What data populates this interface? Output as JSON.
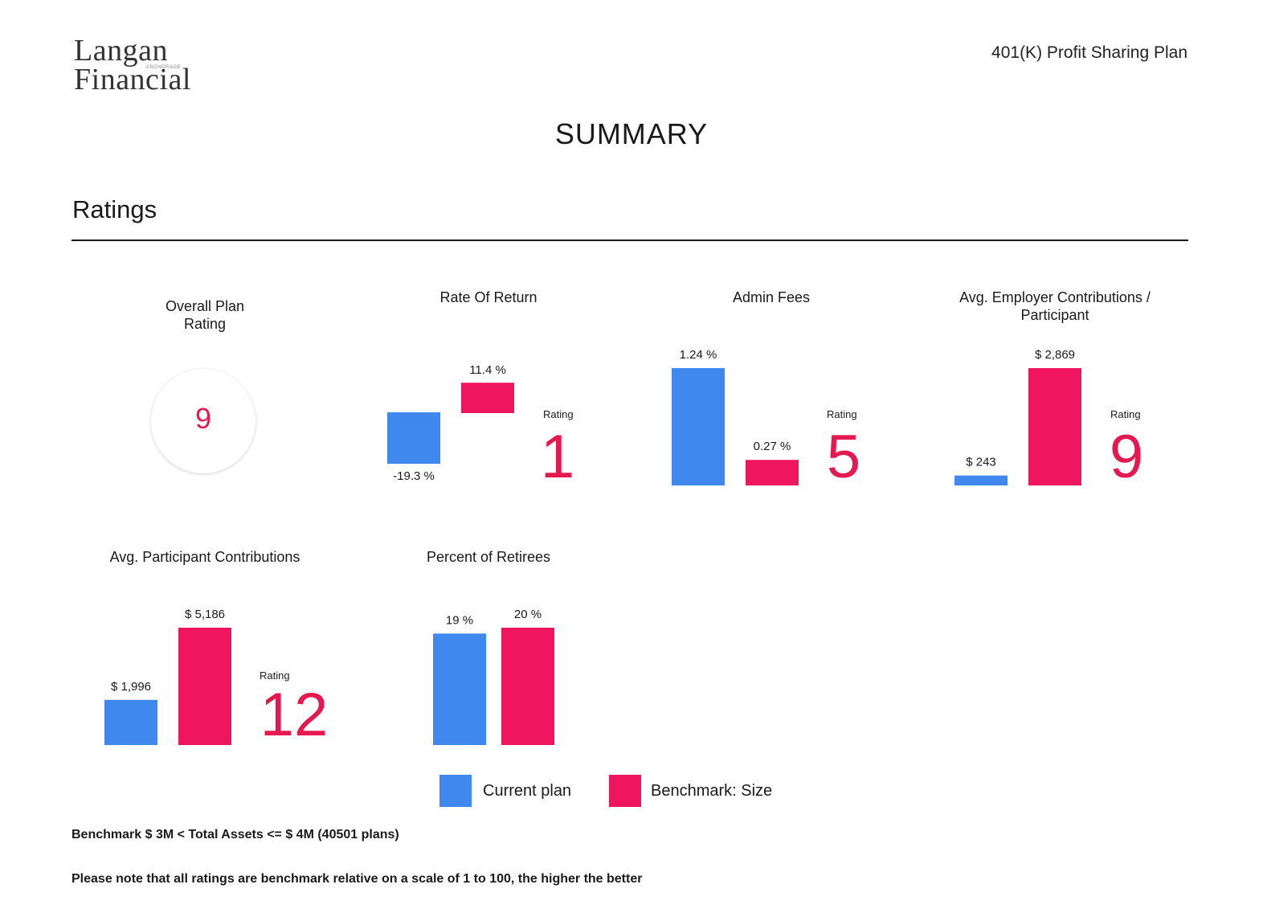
{
  "header": {
    "logo_line1": "Langan",
    "logo_line2": "Financial",
    "logo_tagline": "ANCHORAGE",
    "plan_name": "401(K) Profit Sharing Plan",
    "page_title": "SUMMARY",
    "section_title": "Ratings"
  },
  "colors": {
    "current": "#3e88ee",
    "benchmark": "#f0155f",
    "rating": "#e5194f"
  },
  "overall": {
    "title_line1": "Overall Plan",
    "title_line2": "Rating",
    "value": "9"
  },
  "chart_data": [
    {
      "type": "bar",
      "title": "Rate Of Return",
      "categories": [
        "Current plan",
        "Benchmark: Size"
      ],
      "values": [
        -19.3,
        11.4
      ],
      "labels": [
        "-19.3 %",
        "11.4 %"
      ],
      "rating_label": "Rating",
      "rating": "1"
    },
    {
      "type": "bar",
      "title": "Admin Fees",
      "categories": [
        "Current plan",
        "Benchmark: Size"
      ],
      "values": [
        1.24,
        0.27
      ],
      "labels": [
        "1.24 %",
        "0.27 %"
      ],
      "rating_label": "Rating",
      "rating": "5"
    },
    {
      "type": "bar",
      "title": "Avg. Employer Contributions / Participant",
      "title_line1": "Avg. Employer Contributions /",
      "title_line2": "Participant",
      "categories": [
        "Current plan",
        "Benchmark: Size"
      ],
      "values": [
        243,
        2869
      ],
      "labels": [
        "$ 243",
        "$ 2,869"
      ],
      "rating_label": "Rating",
      "rating": "9"
    },
    {
      "type": "bar",
      "title": "Avg. Participant Contributions",
      "categories": [
        "Current plan",
        "Benchmark: Size"
      ],
      "values": [
        1996,
        5186
      ],
      "labels": [
        "$ 1,996",
        "$ 5,186"
      ],
      "rating_label": "Rating",
      "rating": "12"
    },
    {
      "type": "bar",
      "title": "Percent of Retirees",
      "categories": [
        "Current plan",
        "Benchmark: Size"
      ],
      "values": [
        19,
        20
      ],
      "labels": [
        "19 %",
        "20 %"
      ]
    }
  ],
  "legend": [
    {
      "label": "Current plan",
      "color": "#3e88ee"
    },
    {
      "label": "Benchmark: Size",
      "color": "#f0155f"
    }
  ],
  "footnotes": {
    "benchmark": "Benchmark $ 3M < Total Assets <= $ 4M (40501 plans)",
    "note": "Please note that all ratings are benchmark relative on a scale of 1 to 100, the higher the better"
  }
}
